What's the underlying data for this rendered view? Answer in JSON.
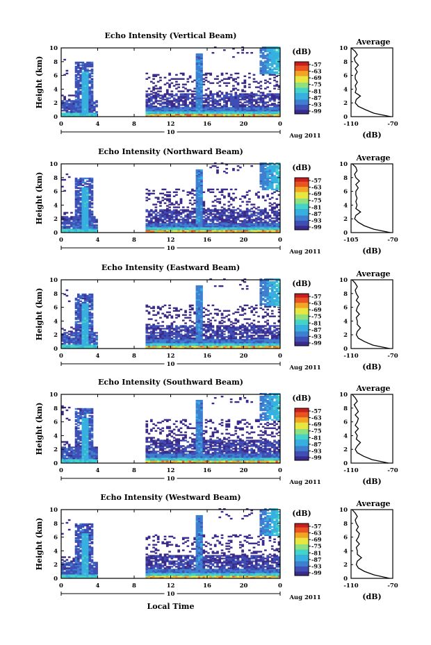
{
  "figure": {
    "xlabel": "Local Time",
    "date_label": "Aug 2011",
    "colorbar_unit": "(dB)",
    "colorbar_ticks": [
      "-57",
      "-63",
      "-69",
      "-75",
      "-81",
      "-87",
      "-93",
      "-99"
    ],
    "colorscale": [
      "#3b2a8a",
      "#3f4fb5",
      "#3f7fd0",
      "#37b0e0",
      "#45d3c8",
      "#8fe07e",
      "#e8e640",
      "#f2a424",
      "#e85321",
      "#c81e1e"
    ]
  },
  "chart_data": [
    {
      "type": "heatmap",
      "title": "Echo Intensity (Vertical Beam)",
      "ylabel": "Height (km)",
      "xlabel": "",
      "xlim": [
        0,
        24
      ],
      "ylim": [
        0,
        10
      ],
      "xticks": [
        "0",
        "4",
        "8",
        "12",
        "16",
        "20",
        "0"
      ],
      "yticks": [
        "0",
        "2",
        "4",
        "6",
        "8",
        "10"
      ],
      "day_marker": "10",
      "clim": [
        -99,
        -57
      ],
      "profile": {
        "title": "Average",
        "xlabel": "(dB)",
        "xlim": [
          -110,
          -70
        ],
        "xticks": [
          "-110",
          "-70"
        ],
        "height": [
          0,
          0.5,
          1,
          1.5,
          2,
          2.5,
          3,
          3.5,
          4,
          4.5,
          5,
          5.5,
          6,
          6.5,
          7,
          7.5,
          8,
          8.5,
          9,
          9.5,
          10
        ],
        "values": [
          -72,
          -88,
          -96,
          -103,
          -106,
          -105,
          -101,
          -106,
          -105,
          -106,
          -104,
          -106,
          -106,
          -104,
          -106,
          -103,
          -106,
          -107,
          -104,
          -106,
          -110
        ]
      }
    },
    {
      "type": "heatmap",
      "title": "Echo Intensity (Northward Beam)",
      "ylabel": "Height (km)",
      "xlabel": "",
      "xlim": [
        0,
        24
      ],
      "ylim": [
        0,
        10
      ],
      "xticks": [
        "0",
        "4",
        "8",
        "12",
        "16",
        "20",
        "0"
      ],
      "yticks": [
        "0",
        "2",
        "4",
        "6",
        "8",
        "10"
      ],
      "day_marker": "10",
      "clim": [
        -99,
        -57
      ],
      "profile": {
        "title": "Average",
        "xlabel": "(dB)",
        "xlim": [
          -105,
          -70
        ],
        "xticks": [
          "-105",
          "-70"
        ],
        "height": [
          0,
          0.5,
          1,
          1.5,
          2,
          2.5,
          3,
          3.5,
          4,
          4.5,
          5,
          5.5,
          6,
          6.5,
          7,
          7.5,
          8,
          8.5,
          9,
          9.5,
          10
        ],
        "values": [
          -72,
          -86,
          -94,
          -99,
          -102,
          -101,
          -97,
          -101,
          -100,
          -101,
          -100,
          -101,
          -101,
          -99,
          -101,
          -98,
          -101,
          -102,
          -100,
          -101,
          -104
        ]
      }
    },
    {
      "type": "heatmap",
      "title": "Echo Intensity (Eastward Beam)",
      "ylabel": "Height (km)",
      "xlabel": "",
      "xlim": [
        0,
        24
      ],
      "ylim": [
        0,
        10
      ],
      "xticks": [
        "0",
        "4",
        "8",
        "12",
        "16",
        "20",
        "0"
      ],
      "yticks": [
        "0",
        "2",
        "4",
        "6",
        "8",
        "10"
      ],
      "day_marker": "10",
      "clim": [
        -99,
        -57
      ],
      "profile": {
        "title": "Average",
        "xlabel": "(dB)",
        "xlim": [
          -110,
          -70
        ],
        "xticks": [
          "-110",
          "-70"
        ],
        "height": [
          0,
          0.5,
          1,
          1.5,
          2,
          2.5,
          3,
          3.5,
          4,
          4.5,
          5,
          5.5,
          6,
          6.5,
          7,
          7.5,
          8,
          8.5,
          9,
          9.5,
          10
        ],
        "values": [
          -73,
          -89,
          -97,
          -103,
          -105,
          -104,
          -101,
          -104,
          -104,
          -105,
          -102,
          -105,
          -104,
          -102,
          -105,
          -103,
          -105,
          -106,
          -104,
          -106,
          -109
        ]
      }
    },
    {
      "type": "heatmap",
      "title": "Echo Intensity (Southward Beam)",
      "ylabel": "Height (km)",
      "xlabel": "",
      "xlim": [
        0,
        24
      ],
      "ylim": [
        0,
        10
      ],
      "xticks": [
        "0",
        "4",
        "8",
        "12",
        "16",
        "20",
        "0"
      ],
      "yticks": [
        "0",
        "2",
        "4",
        "6",
        "8",
        "10"
      ],
      "day_marker": "10",
      "clim": [
        -99,
        -57
      ],
      "profile": {
        "title": "Average",
        "xlabel": "(dB)",
        "xlim": [
          -110,
          -70
        ],
        "xticks": [
          "-110",
          "-70"
        ],
        "height": [
          0,
          0.5,
          1,
          1.5,
          2,
          2.5,
          3,
          3.5,
          4,
          4.5,
          5,
          5.5,
          6,
          6.5,
          7,
          7.5,
          8,
          8.5,
          9,
          9.5,
          10
        ],
        "values": [
          -74,
          -90,
          -98,
          -104,
          -106,
          -104,
          -101,
          -105,
          -104,
          -106,
          -103,
          -106,
          -104,
          -103,
          -106,
          -103,
          -105,
          -107,
          -104,
          -106,
          -109
        ]
      }
    },
    {
      "type": "heatmap",
      "title": "Echo Intensity (Westward Beam)",
      "ylabel": "Height (km)",
      "xlabel": "Local Time",
      "xlim": [
        0,
        24
      ],
      "ylim": [
        0,
        10
      ],
      "xticks": [
        "0",
        "4",
        "8",
        "12",
        "16",
        "20",
        "0"
      ],
      "yticks": [
        "0",
        "2",
        "4",
        "6",
        "8",
        "10"
      ],
      "day_marker": "10",
      "clim": [
        -99,
        -57
      ],
      "profile": {
        "title": "Average",
        "xlabel": "(dB)",
        "xlim": [
          -110,
          -70
        ],
        "xticks": [
          "-110",
          "-70"
        ],
        "height": [
          0,
          0.5,
          1,
          1.5,
          2,
          2.5,
          3,
          3.5,
          4,
          4.5,
          5,
          5.5,
          6,
          6.5,
          7,
          7.5,
          8,
          8.5,
          9,
          9.5,
          10
        ],
        "values": [
          -73,
          -88,
          -97,
          -103,
          -105,
          -104,
          -100,
          -104,
          -104,
          -105,
          -102,
          -105,
          -103,
          -102,
          -105,
          -103,
          -105,
          -106,
          -104,
          -106,
          -109
        ]
      }
    }
  ]
}
